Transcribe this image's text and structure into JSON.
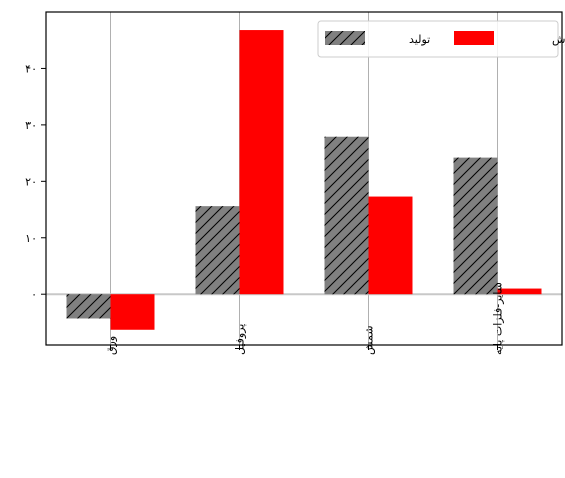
{
  "chart_data": {
    "type": "bar",
    "categories": [
      "ورق",
      "پروفیل",
      "شمش",
      "سایر-فلزات پایه"
    ],
    "series": [
      {
        "name": "تولید",
        "values": [
          -4.3,
          15.6,
          27.9,
          24.2
        ],
        "color": "#808080",
        "pattern": "hatch"
      },
      {
        "name": "فروش",
        "values": [
          -6.3,
          46.8,
          17.3,
          1.0
        ],
        "color": "#ff0000"
      }
    ],
    "y_ticks": [
      0,
      10,
      20,
      30,
      40
    ],
    "y_tick_labels": [
      "۰",
      "۱۰",
      "۲۰",
      "۳۰",
      "۴۰"
    ],
    "ylim": [
      -9,
      50
    ],
    "grid": "vertical",
    "legend_position": "top-right"
  }
}
